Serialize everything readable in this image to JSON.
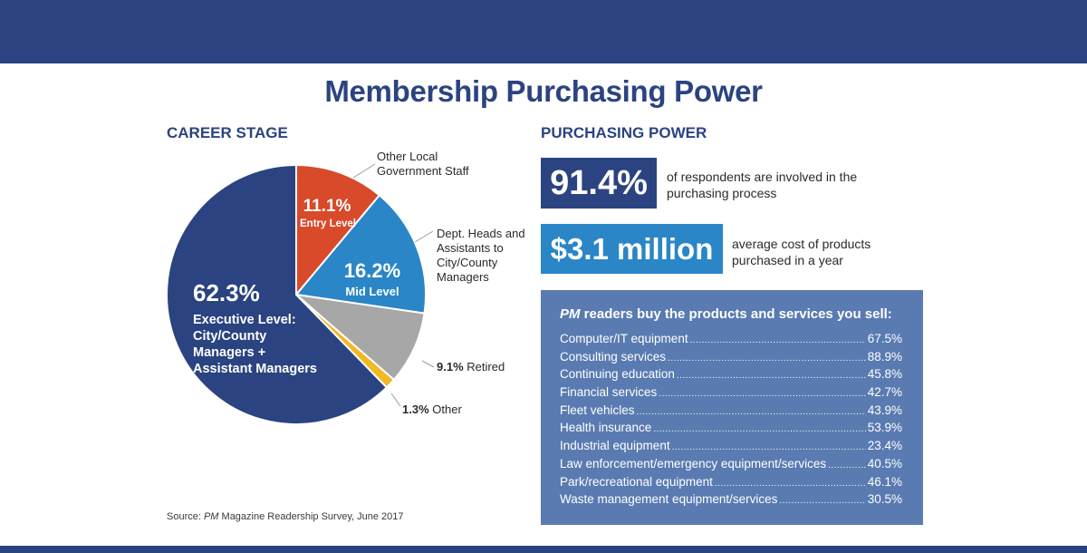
{
  "title": "Membership Purchasing Power",
  "career": {
    "heading": "CAREER STAGE",
    "chart_data": {
      "type": "pie",
      "slices": [
        {
          "pct": "11.1%",
          "value": 11.1,
          "label": "Entry Level",
          "callout": "Other Local Government Staff",
          "color": "#d84a2a"
        },
        {
          "pct": "16.2%",
          "value": 16.2,
          "label": "Mid Level",
          "callout": "Dept. Heads and Assistants to City/County Managers",
          "color": "#2a86c6"
        },
        {
          "pct": "9.1%",
          "value": 9.1,
          "label": "Retired",
          "color": "#a7a7a7"
        },
        {
          "pct": "1.3%",
          "value": 1.3,
          "label": "Other",
          "color": "#f2b824"
        },
        {
          "pct": "62.3%",
          "value": 62.3,
          "label": "Executive Level: City/County Managers + Assistant Managers",
          "color": "#2b4380"
        }
      ]
    }
  },
  "power": {
    "heading": "PURCHASING POWER",
    "stat1": {
      "value": "91.4%",
      "text": "of respondents are involved in the purchasing process",
      "color": "#2b4380"
    },
    "stat2": {
      "value": "$3.1 million",
      "text": "average cost of products purchased in a year",
      "color": "#2a86c6"
    },
    "buy": {
      "heading_italic": "PM",
      "heading_rest": " readers buy the products and services you sell:",
      "items": [
        {
          "name": "Computer/IT equipment",
          "pct": "67.5%"
        },
        {
          "name": "Consulting services",
          "pct": "88.9%"
        },
        {
          "name": "Continuing education",
          "pct": "45.8%"
        },
        {
          "name": "Financial services",
          "pct": "42.7%"
        },
        {
          "name": "Fleet vehicles",
          "pct": "43.9%"
        },
        {
          "name": "Health insurance",
          "pct": "53.9%"
        },
        {
          "name": "Industrial equipment",
          "pct": "23.4%"
        },
        {
          "name": "Law enforcement/emergency equipment/services",
          "pct": "40.5%"
        },
        {
          "name": "Park/recreational equipment",
          "pct": "46.1%"
        },
        {
          "name": "Waste management equipment/services",
          "pct": "30.5%"
        }
      ]
    }
  },
  "source": {
    "prefix": "Source: ",
    "italic": "PM",
    "rest": " Magazine Readership Survey, June 2017"
  }
}
